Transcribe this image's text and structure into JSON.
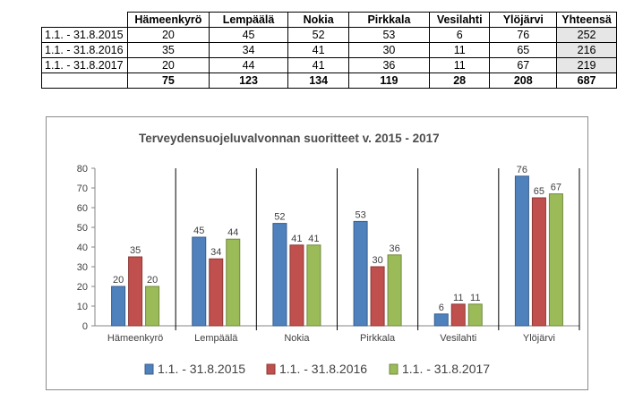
{
  "table": {
    "columns": [
      "Hämeenkyrö",
      "Lempäälä",
      "Nokia",
      "Pirkkala",
      "Vesilahti",
      "Ylöjärvi",
      "Yhteensä"
    ],
    "rows": [
      {
        "label": "1.1. - 31.8.2015",
        "values": [
          "20",
          "45",
          "52",
          "53",
          "6",
          "76",
          "252"
        ]
      },
      {
        "label": "1.1. - 31.8.2016",
        "values": [
          "35",
          "34",
          "41",
          "30",
          "11",
          "65",
          "216"
        ]
      },
      {
        "label": "1.1. - 31.8.2017",
        "values": [
          "20",
          "44",
          "41",
          "36",
          "11",
          "67",
          "219"
        ]
      }
    ],
    "totals": {
      "label": "",
      "values": [
        "75",
        "123",
        "134",
        "119",
        "28",
        "208",
        "687"
      ]
    }
  },
  "chart_data": {
    "type": "bar",
    "title": "Terveydensuojeluvalvonnan suoritteet v. 2015 - 2017",
    "categories": [
      "Hämeenkyrö",
      "Lempäälä",
      "Nokia",
      "Pirkkala",
      "Vesilahti",
      "Ylöjärvi"
    ],
    "series": [
      {
        "name": "1.1. - 31.8.2015",
        "values": [
          20,
          45,
          52,
          53,
          6,
          76
        ],
        "color": "#4f81bd",
        "stroke": "#385d8a"
      },
      {
        "name": "1.1. - 31.8.2016",
        "values": [
          35,
          34,
          41,
          30,
          11,
          65
        ],
        "color": "#c0504d",
        "stroke": "#8c3836"
      },
      {
        "name": "1.1. - 31.8.2017",
        "values": [
          20,
          44,
          41,
          36,
          11,
          67
        ],
        "color": "#9bbb59",
        "stroke": "#71893f"
      }
    ],
    "ylim": [
      0,
      80
    ],
    "yticks": [
      0,
      10,
      20,
      30,
      40,
      50,
      60,
      70,
      80
    ],
    "xlabel": "",
    "ylabel": "",
    "grid": false,
    "data_labels": true,
    "legend": "bottom"
  }
}
